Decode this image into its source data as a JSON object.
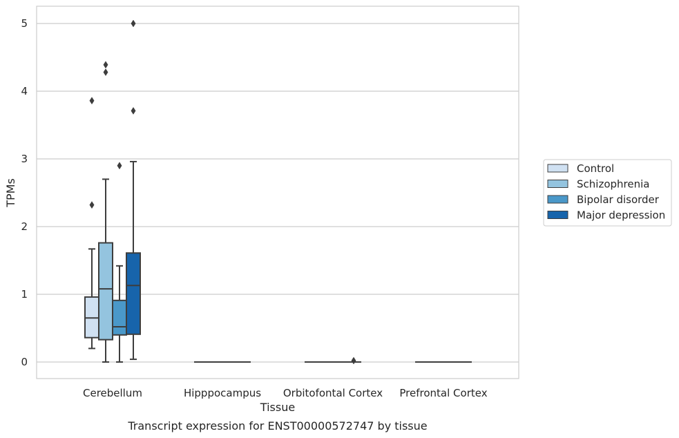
{
  "chart_data": {
    "type": "boxplot",
    "title": "",
    "caption": "Transcript expression for ENST00000572747 by tissue",
    "xlabel": "Tissue",
    "ylabel": "TPMs",
    "ylim": [
      -0.25,
      5.25
    ],
    "yticks": [
      0,
      1,
      2,
      3,
      4,
      5
    ],
    "grid": "horizontal",
    "legend_position": "outside-right",
    "categories": [
      "Cerebellum",
      "Hipppocampus",
      "Orbitofontal Cortex",
      "Prefrontal Cortex"
    ],
    "series": [
      {
        "name": "Control",
        "color": "#d0e1f2",
        "boxes": [
          {
            "whisker_low": 0.2,
            "q1": 0.36,
            "median": 0.65,
            "q3": 0.96,
            "whisker_high": 1.67,
            "outliers": [
              2.32,
              3.86
            ]
          },
          {
            "whisker_low": 0,
            "q1": 0,
            "median": 0,
            "q3": 0,
            "whisker_high": 0,
            "outliers": []
          },
          {
            "whisker_low": 0,
            "q1": 0,
            "median": 0,
            "q3": 0,
            "whisker_high": 0,
            "outliers": []
          },
          {
            "whisker_low": 0,
            "q1": 0,
            "median": 0,
            "q3": 0,
            "whisker_high": 0,
            "outliers": []
          }
        ]
      },
      {
        "name": "Schizophrenia",
        "color": "#94c4df",
        "boxes": [
          {
            "whisker_low": 0.0,
            "q1": 0.33,
            "median": 1.08,
            "q3": 1.76,
            "whisker_high": 2.7,
            "outliers": [
              4.28,
              4.39
            ]
          },
          {
            "whisker_low": 0,
            "q1": 0,
            "median": 0,
            "q3": 0,
            "whisker_high": 0,
            "outliers": []
          },
          {
            "whisker_low": 0,
            "q1": 0,
            "median": 0,
            "q3": 0,
            "whisker_high": 0,
            "outliers": []
          },
          {
            "whisker_low": 0,
            "q1": 0,
            "median": 0,
            "q3": 0,
            "whisker_high": 0,
            "outliers": []
          }
        ]
      },
      {
        "name": "Bipolar disorder",
        "color": "#4a98c9",
        "boxes": [
          {
            "whisker_low": 0.0,
            "q1": 0.4,
            "median": 0.52,
            "q3": 0.91,
            "whisker_high": 1.42,
            "outliers": [
              2.9
            ]
          },
          {
            "whisker_low": 0,
            "q1": 0,
            "median": 0,
            "q3": 0,
            "whisker_high": 0,
            "outliers": []
          },
          {
            "whisker_low": 0,
            "q1": 0,
            "median": 0,
            "q3": 0,
            "whisker_high": 0,
            "outliers": []
          },
          {
            "whisker_low": 0,
            "q1": 0,
            "median": 0,
            "q3": 0,
            "whisker_high": 0,
            "outliers": []
          }
        ]
      },
      {
        "name": "Major depression",
        "color": "#1764ab",
        "boxes": [
          {
            "whisker_low": 0.04,
            "q1": 0.41,
            "median": 1.13,
            "q3": 1.61,
            "whisker_high": 2.96,
            "outliers": [
              3.71,
              5.0
            ]
          },
          {
            "whisker_low": 0,
            "q1": 0,
            "median": 0,
            "q3": 0,
            "whisker_high": 0,
            "outliers": []
          },
          {
            "whisker_low": 0,
            "q1": 0,
            "median": 0,
            "q3": 0,
            "whisker_high": 0,
            "outliers": [
              0.02
            ]
          },
          {
            "whisker_low": 0,
            "q1": 0,
            "median": 0,
            "q3": 0,
            "whisker_high": 0,
            "outliers": []
          }
        ]
      }
    ]
  },
  "colors": {
    "grid": "#cccccc",
    "axes_edge": "#cccccc",
    "box_line": "#3d3d3d",
    "text": "#262626"
  }
}
